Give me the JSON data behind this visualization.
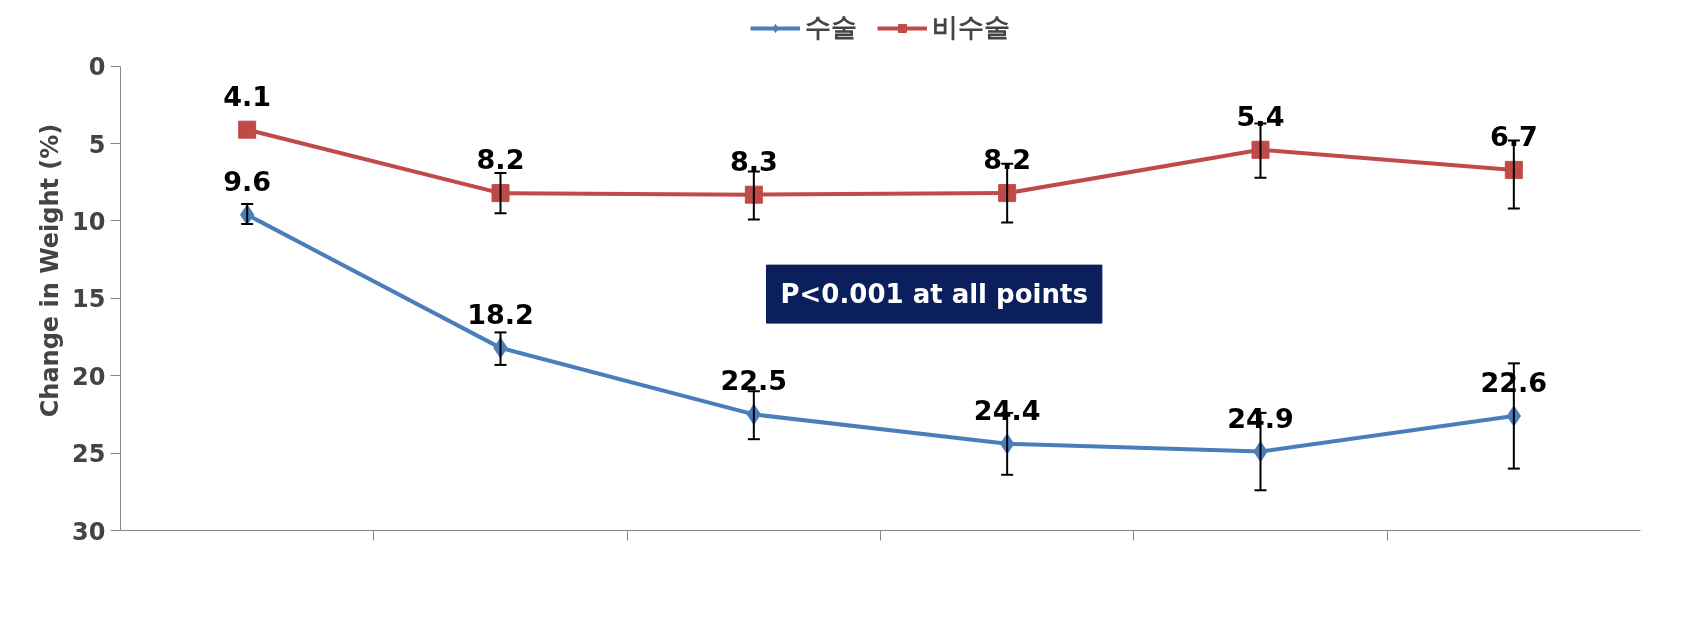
{
  "chart_data": {
    "type": "line",
    "ylabel": "Change in Weight (%)",
    "categories": [
      null,
      null,
      null,
      null,
      null,
      null
    ],
    "ylim": [
      30,
      0
    ],
    "yticks": [
      0,
      5,
      10,
      15,
      20,
      25,
      30
    ],
    "grid": false,
    "legend": "top",
    "tick_labels": "y",
    "data_labels": true,
    "series": [
      {
        "name": "수술",
        "color": "#4a7ebb",
        "marker": "diamond",
        "values": [
          9.6,
          18.2,
          22.5,
          24.4,
          24.9,
          22.6
        ],
        "errors": [
          [
            8.9,
            10.2
          ],
          [
            17.2,
            19.3
          ],
          [
            21.0,
            24.1
          ],
          [
            22.4,
            26.4
          ],
          [
            22.4,
            27.4
          ],
          [
            19.2,
            26.0
          ]
        ]
      },
      {
        "name": "비수술",
        "color": "#be4b48",
        "marker": "square",
        "values": [
          4.1,
          8.2,
          8.3,
          8.2,
          5.4,
          6.7
        ],
        "errors": [
          null,
          [
            6.9,
            9.5
          ],
          [
            6.8,
            9.9
          ],
          [
            6.3,
            10.1
          ],
          [
            3.7,
            7.2
          ],
          [
            4.8,
            9.2
          ]
        ]
      }
    ],
    "annotations": [
      "P<0.001 at all points"
    ]
  }
}
